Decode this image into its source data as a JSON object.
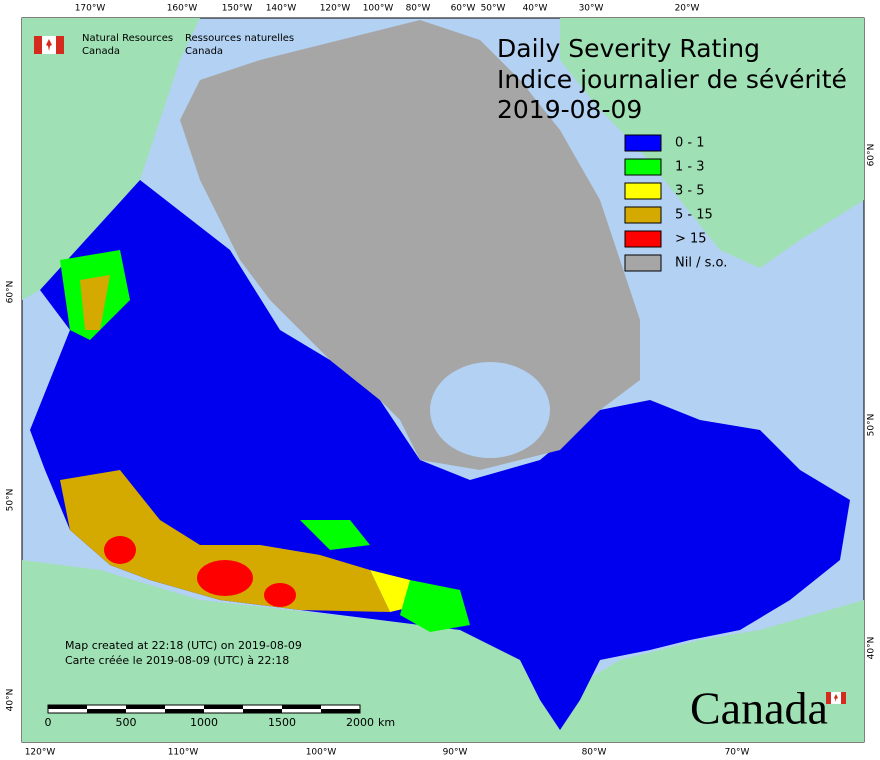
{
  "header": {
    "agency_en": [
      "Natural Resources",
      "Canada"
    ],
    "agency_fr": [
      "Ressources naturelles",
      "Canada"
    ]
  },
  "title": {
    "en": "Daily Severity Rating",
    "fr": "Indice journalier de sévérité",
    "date": "2019-08-09"
  },
  "legend": {
    "items": [
      {
        "label": "0 - 1",
        "color": "#0000ff"
      },
      {
        "label": "1 - 3",
        "color": "#00ff00"
      },
      {
        "label": "3 - 5",
        "color": "#ffff00"
      },
      {
        "label": "5 - 15",
        "color": "#d4aa00"
      },
      {
        "label": "> 15",
        "color": "#ff0000"
      },
      {
        "label": "Nil / s.o.",
        "color": "#a6a6a6"
      }
    ]
  },
  "graticule": {
    "top": [
      "170°W",
      "160°W",
      "150°W",
      "140°W",
      "120°W",
      "100°W",
      "80°W",
      "60°W",
      "50°W",
      "40°W",
      "30°W",
      "20°W"
    ],
    "bottom": [
      "120°W",
      "110°W",
      "100°W",
      "90°W",
      "80°W",
      "70°W"
    ],
    "left": [
      "60°N",
      "50°N",
      "40°N"
    ],
    "right": [
      "60°N",
      "50°N",
      "40°N"
    ]
  },
  "footer": {
    "created_en": "Map created at 22:18 (UTC) on 2019-08-09",
    "created_fr": "Carte créée le 2019-08-09 (UTC) à 22:18"
  },
  "scale_bar": {
    "labels": [
      0,
      500,
      1000,
      1500,
      2000
    ],
    "unit": "km"
  },
  "wordmark": "Canada"
}
